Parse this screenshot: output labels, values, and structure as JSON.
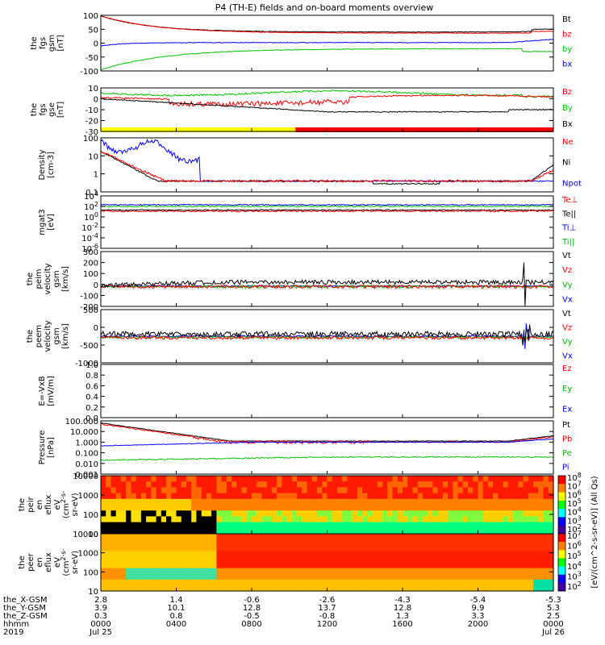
{
  "chart_data": {
    "title": "P4 (TH-E) fields and on-board moments overview",
    "type": "line",
    "panels": [
      {
        "id": "fgs_gsm",
        "ylabel": [
          "the",
          "fgs",
          "gsm",
          "[nT]"
        ],
        "yticks": [
          "100",
          "50",
          "0",
          "-50",
          "-100"
        ],
        "legend": [
          {
            "text": "Bt",
            "color": "#000000"
          },
          {
            "text": "bz",
            "color": "#ff0000"
          },
          {
            "text": "by",
            "color": "#00c000"
          },
          {
            "text": "bx",
            "color": "#0000ff"
          }
        ]
      },
      {
        "id": "fgs_gse",
        "ylabel": [
          "the",
          "fgs",
          "gse",
          "[nT]"
        ],
        "yticks": [
          "10",
          "0",
          "-10",
          "-20",
          "-30"
        ],
        "legend": [
          {
            "text": "Bz",
            "color": "#ff0000"
          },
          {
            "text": "By",
            "color": "#00c000"
          },
          {
            "text": "Bx",
            "color": "#000000"
          }
        ]
      },
      {
        "id": "density",
        "ylabel": [
          "Density",
          "[cm-3]"
        ],
        "yticks": [
          "100",
          "10",
          "1",
          "0.1"
        ],
        "legend": [
          {
            "text": "Ne",
            "color": "#ff0000"
          },
          {
            "text": "Ni",
            "color": "#000000"
          },
          {
            "text": "Npot",
            "color": "#0000ff"
          }
        ]
      },
      {
        "id": "temp",
        "ylabel": [
          "mgat3",
          "[eV]"
        ],
        "yticks": [
          "10^4",
          "10^2",
          "10^0",
          "10^-2",
          "10^-4",
          "10^-6"
        ],
        "legend": [
          {
            "text": "Te⊥",
            "color": "#ff0000"
          },
          {
            "text": "Te||",
            "color": "#000000"
          },
          {
            "text": "Ti⊥",
            "color": "#0000ff"
          },
          {
            "text": "Ti||",
            "color": "#00c000"
          }
        ]
      },
      {
        "id": "peim_vel",
        "ylabel": [
          "the",
          "peim",
          "velocity",
          "gsm",
          "[km/s]"
        ],
        "yticks": [
          "300",
          "200",
          "100",
          "0",
          "-100",
          "-200"
        ],
        "legend": [
          {
            "text": "Vt",
            "color": "#000000"
          },
          {
            "text": "Vz",
            "color": "#ff0000"
          },
          {
            "text": "Vy",
            "color": "#00c000"
          },
          {
            "text": "Vx",
            "color": "#0000ff"
          }
        ]
      },
      {
        "id": "peem_vel",
        "ylabel": [
          "the",
          "peem",
          "velocity",
          "gsm",
          "[km/s]"
        ],
        "yticks": [
          "500",
          "0",
          "-500",
          "-1000"
        ],
        "legend": [
          {
            "text": "Vt",
            "color": "#000000"
          },
          {
            "text": "Vz",
            "color": "#ff0000"
          },
          {
            "text": "Vy",
            "color": "#00c000"
          },
          {
            "text": "Vx",
            "color": "#0000ff"
          }
        ]
      },
      {
        "id": "efield",
        "ylabel": [
          "E=-VxB",
          "[mV/m]"
        ],
        "yticks": [
          "1.0",
          "0.8",
          "0.6",
          "0.4",
          "0.2",
          "0.0"
        ],
        "legend": [
          {
            "text": "Ez",
            "color": "#ff0000"
          },
          {
            "text": "Ey",
            "color": "#00c000"
          },
          {
            "text": "Ex",
            "color": "#0000ff"
          }
        ]
      },
      {
        "id": "pressure",
        "ylabel": [
          "Pressure",
          "[nPa]"
        ],
        "yticks": [
          "100.000",
          "10.000",
          "1.000",
          "0.100",
          "0.010",
          "0.001"
        ],
        "legend": [
          {
            "text": "Pt",
            "color": "#000000"
          },
          {
            "text": "Pb",
            "color": "#ff0000"
          },
          {
            "text": "Pe",
            "color": "#00c000"
          },
          {
            "text": "Pi",
            "color": "#0000ff"
          }
        ]
      },
      {
        "id": "peir_spec",
        "ylabel": [
          "the",
          "peir",
          "en",
          "eflux",
          "eV",
          "(cm^2-s-",
          "sr-eV)"
        ],
        "yticks": [
          "10000",
          "1000",
          "100",
          "10"
        ],
        "colorbar": [
          "10^8",
          "10^7",
          "10^6",
          "10^5",
          "10^4",
          "10^3",
          "10^2"
        ]
      },
      {
        "id": "peer_spec",
        "ylabel": [
          "the",
          "peer",
          "en",
          "eflux",
          "eV",
          "(cm^2-s-",
          "sr-eV)"
        ],
        "yticks": [
          "10000",
          "1000",
          "100",
          "10"
        ],
        "colorbar": [
          "10^7",
          "10^6",
          "10^5",
          "10^4",
          "10^3",
          "10^2"
        ]
      }
    ],
    "colorbar_label": "[eV/(cm^2-s-sr-eV)] (All Qs)",
    "xaxis": {
      "row_labels": [
        "the_X-GSM",
        "the_Y-GSM",
        "the_Z-GSM",
        "hhmm",
        "2019"
      ],
      "ticks": [
        {
          "x": "2.8",
          "y": "3.9",
          "z": "0.3",
          "hhmm": "0000",
          "date": "Jul 25"
        },
        {
          "x": "1.4",
          "y": "10.1",
          "z": "0.8",
          "hhmm": "0400",
          "date": ""
        },
        {
          "x": "-0.6",
          "y": "12.8",
          "z": "-0.5",
          "hhmm": "0800",
          "date": ""
        },
        {
          "x": "-2.6",
          "y": "13.7",
          "z": "-0.8",
          "hhmm": "1200",
          "date": ""
        },
        {
          "x": "-4.3",
          "y": "12.8",
          "z": "1.3",
          "hhmm": "1600",
          "date": ""
        },
        {
          "x": "-5.4",
          "y": "9.9",
          "z": "3.3",
          "hhmm": "2000",
          "date": ""
        },
        {
          "x": "-5.3",
          "y": "5.3",
          "z": "2.5",
          "hhmm": "0000",
          "date": "Jul 26"
        }
      ]
    }
  }
}
